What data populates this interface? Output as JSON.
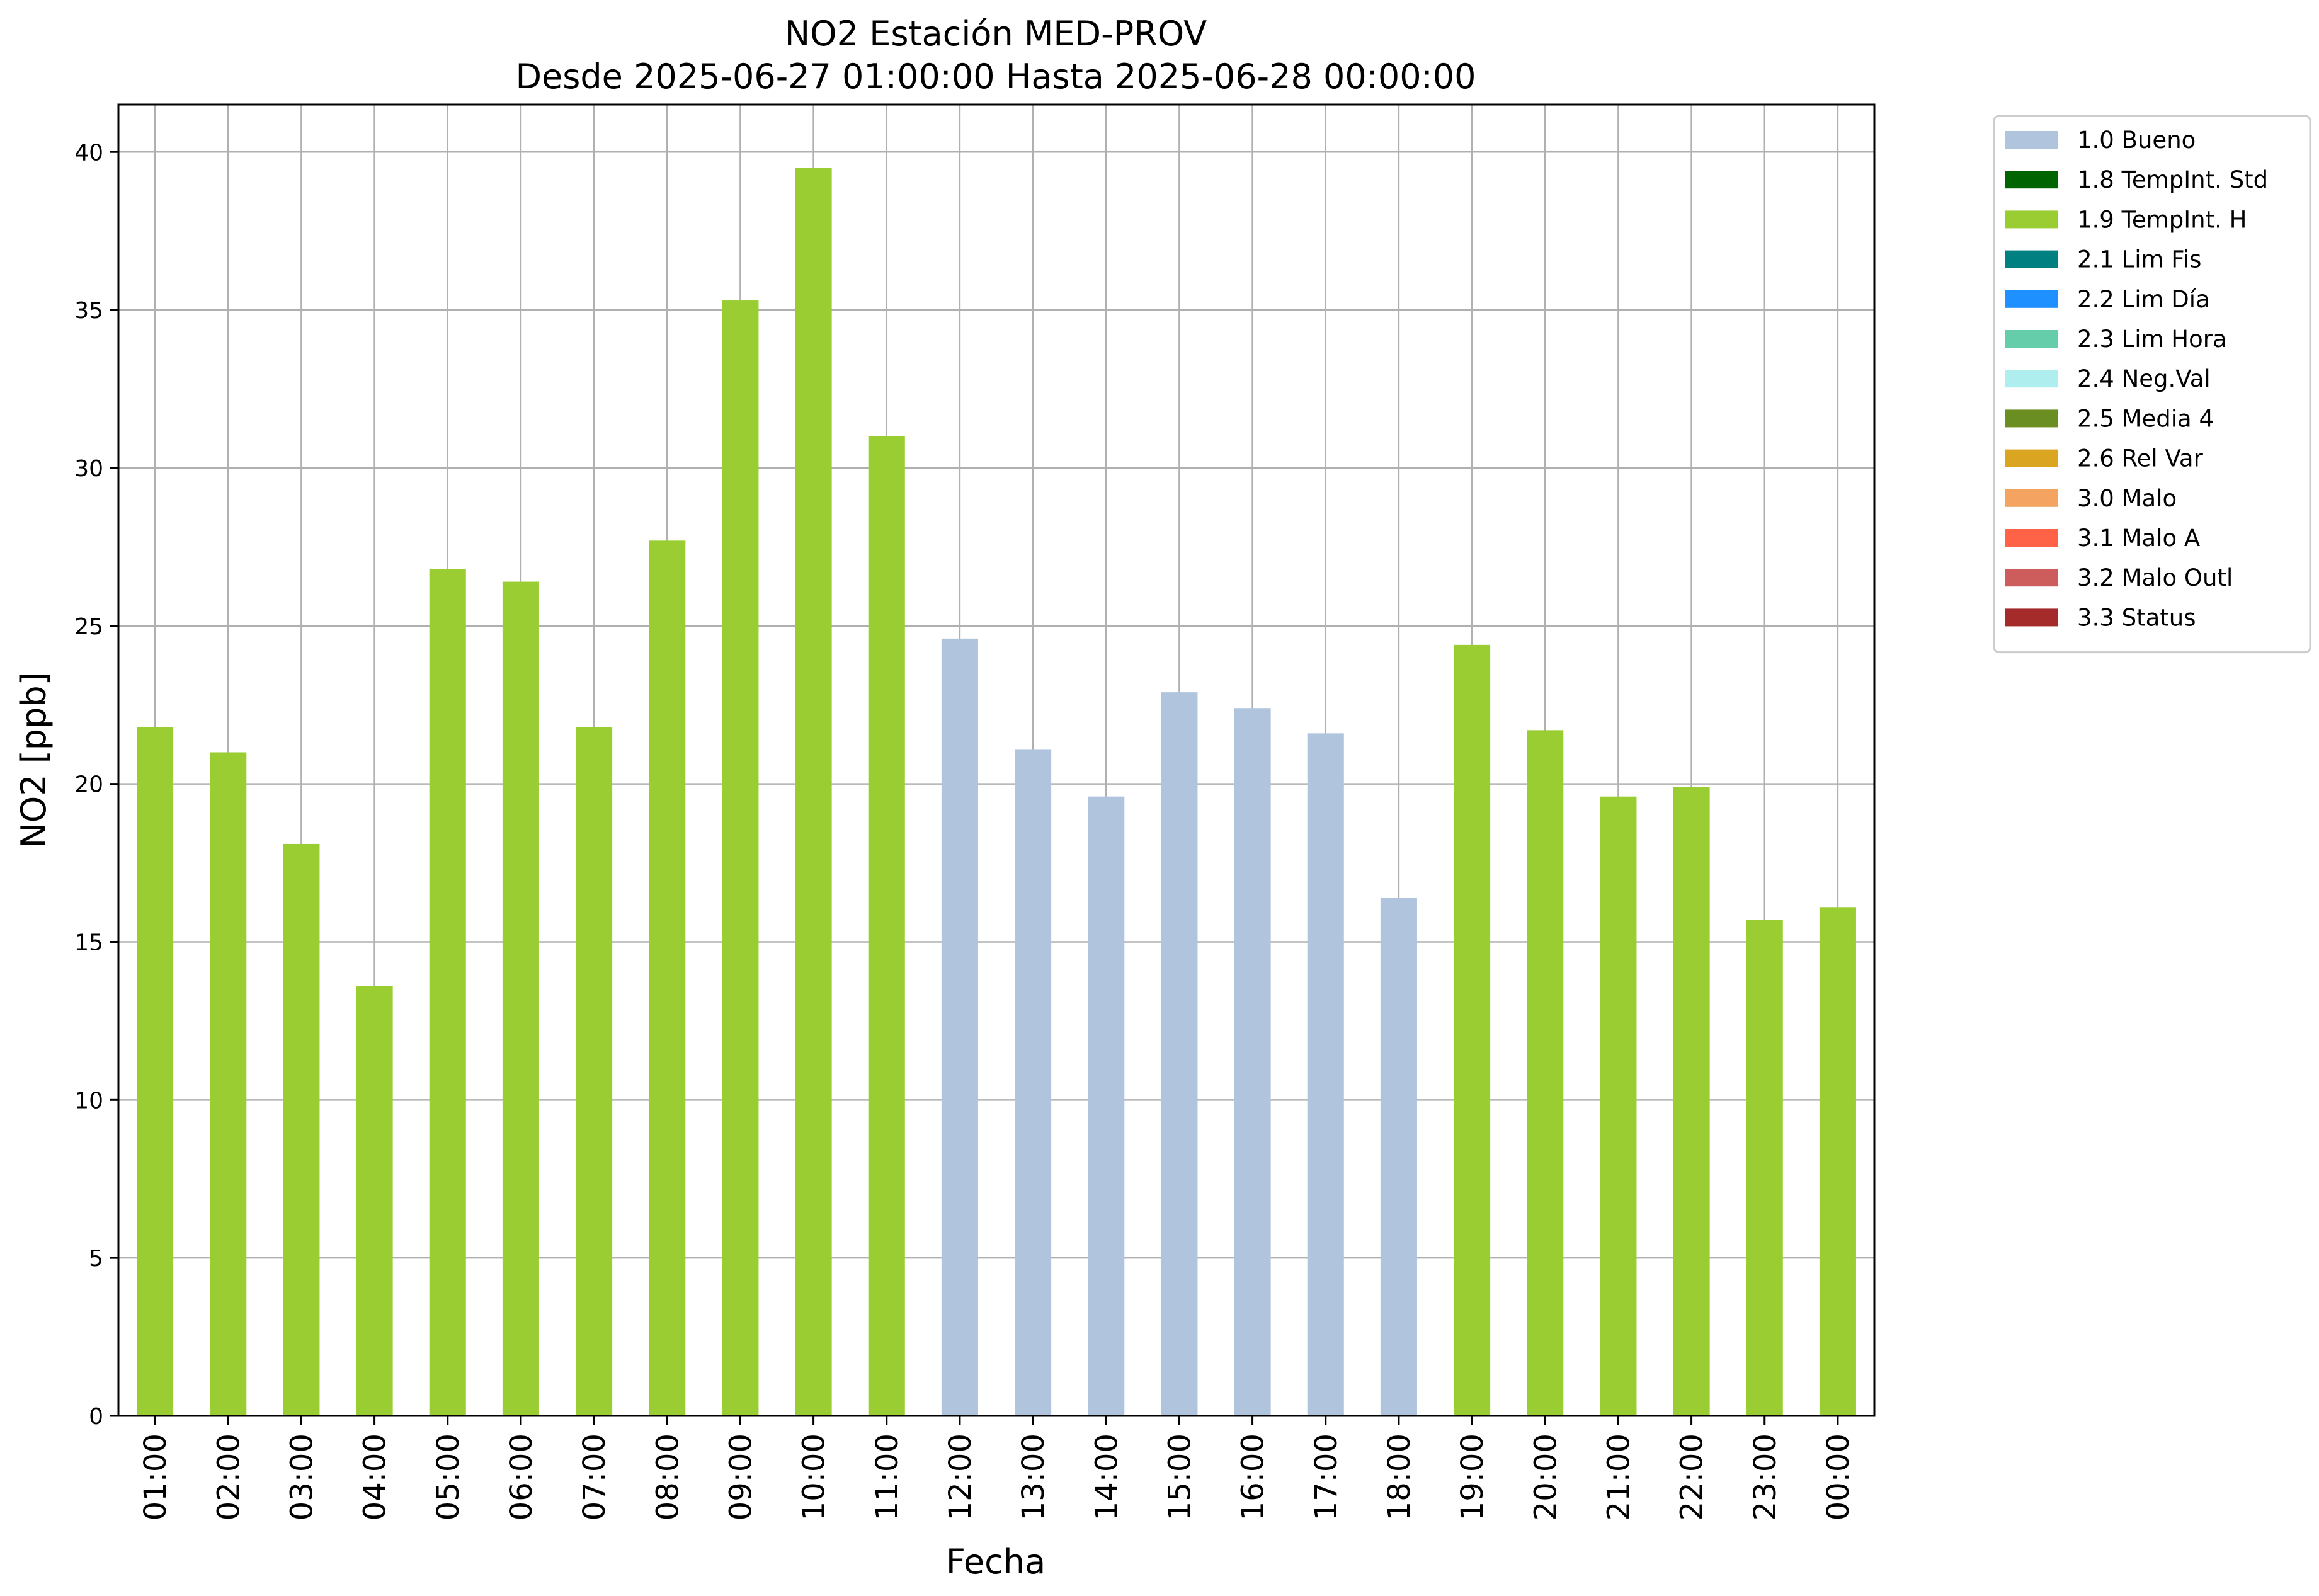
{
  "chart_data": {
    "type": "bar",
    "title": "NO2 Estación MED-PROV",
    "subtitle": "Desde 2025-06-27 01:00:00 Hasta 2025-06-28 00:00:00",
    "xlabel": "Fecha",
    "ylabel": "NO2 [ppb]",
    "ylim": [
      0,
      41.5
    ],
    "yticks": [
      0,
      5,
      10,
      15,
      20,
      25,
      30,
      35,
      40
    ],
    "grid": true,
    "legend_position": "outside-top-right",
    "categories": [
      "01:00",
      "02:00",
      "03:00",
      "04:00",
      "05:00",
      "06:00",
      "07:00",
      "08:00",
      "09:00",
      "10:00",
      "11:00",
      "12:00",
      "13:00",
      "14:00",
      "15:00",
      "16:00",
      "17:00",
      "18:00",
      "19:00",
      "20:00",
      "21:00",
      "22:00",
      "23:00",
      "00:00"
    ],
    "values": [
      21.8,
      21.0,
      18.1,
      13.6,
      26.8,
      26.4,
      21.8,
      27.7,
      35.3,
      39.5,
      31.0,
      24.6,
      21.1,
      19.6,
      22.9,
      22.4,
      21.6,
      16.4,
      24.4,
      21.7,
      19.6,
      19.9,
      15.7,
      16.1
    ],
    "flags": [
      "1.9 TempInt. H",
      "1.9 TempInt. H",
      "1.9 TempInt. H",
      "1.9 TempInt. H",
      "1.9 TempInt. H",
      "1.9 TempInt. H",
      "1.9 TempInt. H",
      "1.9 TempInt. H",
      "1.9 TempInt. H",
      "1.9 TempInt. H",
      "1.9 TempInt. H",
      "1.0 Bueno",
      "1.0 Bueno",
      "1.0 Bueno",
      "1.0 Bueno",
      "1.0 Bueno",
      "1.0 Bueno",
      "1.0 Bueno",
      "1.9 TempInt. H",
      "1.9 TempInt. H",
      "1.9 TempInt. H",
      "1.9 TempInt. H",
      "1.9 TempInt. H",
      "1.9 TempInt. H"
    ],
    "legend": [
      {
        "label": "1.0 Bueno",
        "color": "#b0c4de"
      },
      {
        "label": "1.8 TempInt. Std",
        "color": "#006400"
      },
      {
        "label": "1.9 TempInt. H",
        "color": "#9acd32"
      },
      {
        "label": "2.1 Lim Fis",
        "color": "#008080"
      },
      {
        "label": "2.2 Lim Día",
        "color": "#1e90ff"
      },
      {
        "label": "2.3 Lim Hora",
        "color": "#66cdaa"
      },
      {
        "label": "2.4 Neg.Val",
        "color": "#afeeee"
      },
      {
        "label": "2.5 Media 4",
        "color": "#6b8e23"
      },
      {
        "label": "2.6 Rel Var",
        "color": "#daa520"
      },
      {
        "label": "3.0 Malo",
        "color": "#f4a460"
      },
      {
        "label": "3.1 Malo A",
        "color": "#ff6347"
      },
      {
        "label": "3.2 Malo Outl",
        "color": "#cd5c5c"
      },
      {
        "label": "3.3 Status",
        "color": "#a52a2a"
      }
    ]
  }
}
